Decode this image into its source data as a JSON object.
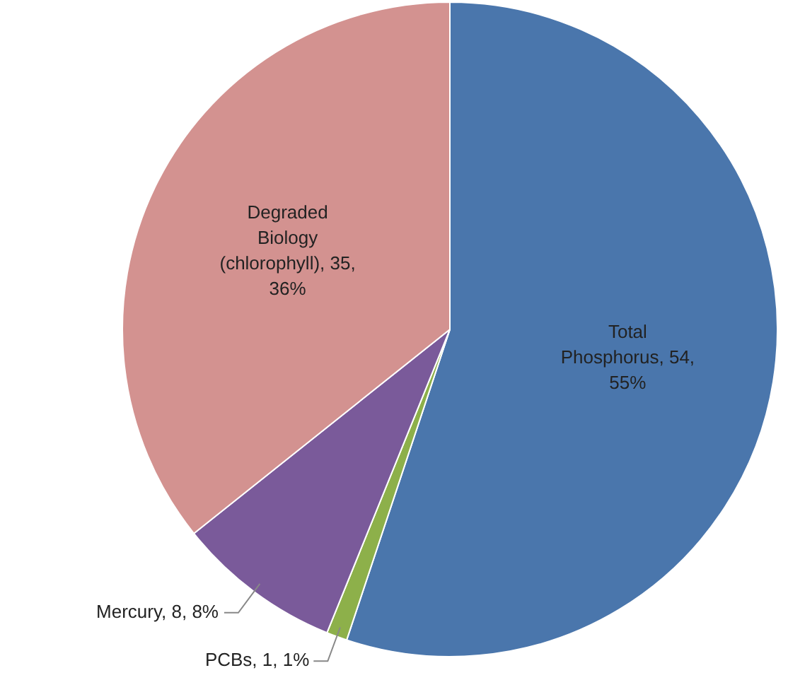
{
  "chart_data": {
    "type": "pie",
    "categories": [
      "Total Phosphorus",
      "PCBs",
      "Mercury",
      "Degraded Biology (chlorophyll)"
    ],
    "values": [
      54,
      1,
      8,
      35
    ],
    "colors": [
      "#4a76ac",
      "#8db04a",
      "#7a5a9a",
      "#d39290"
    ],
    "value_labels": [
      "54, 55%",
      "1, 1%",
      "8, 8%",
      "35, 36%"
    ]
  }
}
